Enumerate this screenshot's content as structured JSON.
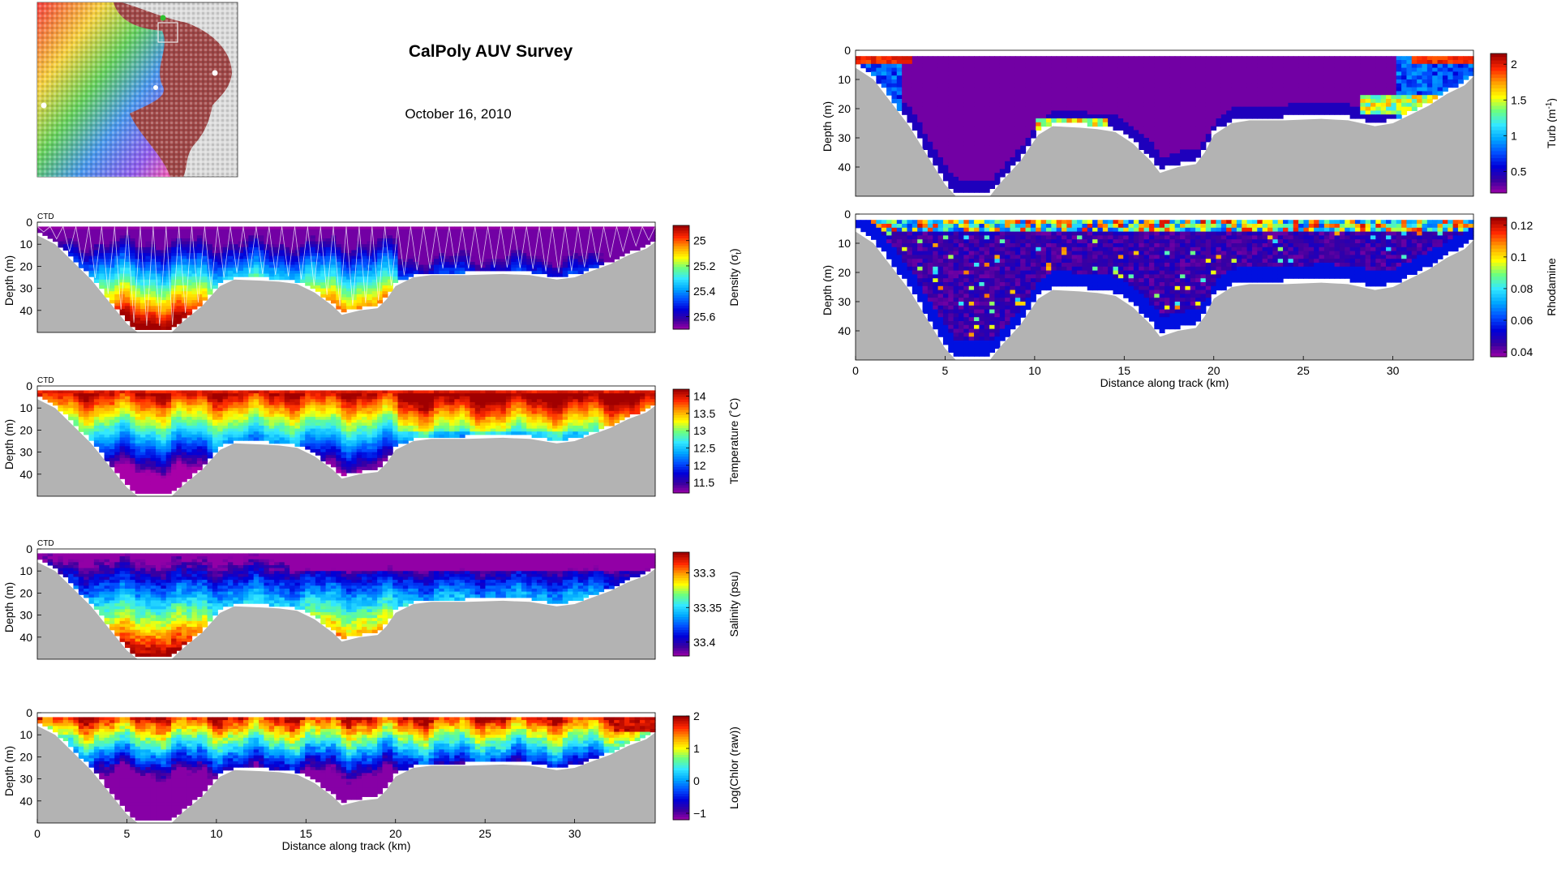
{
  "header": {
    "title": "CalPoly AUV Survey",
    "date": "October 16, 2010"
  },
  "colors": {
    "bathymetry": "#b3b3b3",
    "colormap": [
      "#a800a8",
      "#3b00a0",
      "#0000d8",
      "#0050ff",
      "#00a8ff",
      "#33e8ff",
      "#6cff80",
      "#ffff00",
      "#ffa000",
      "#ff2800",
      "#a00000"
    ],
    "rhodamine_colormap": [
      "#a800a8",
      "#3b00a0",
      "#0000d8",
      "#0050ff",
      "#00a8ff",
      "#33e8ff",
      "#6cff80",
      "#ffff00",
      "#ffa000",
      "#ff2800",
      "#a00000"
    ]
  },
  "chart_data": [
    {
      "id": "density",
      "type": "heatmap",
      "tag": "CTD",
      "xlabel": "",
      "ylabel": "Depth (m)",
      "xlim": [
        0,
        34.5
      ],
      "ylim": [
        0,
        48
      ],
      "yticks": [
        0,
        10,
        20,
        30,
        40
      ],
      "xticks": [],
      "colorbar": {
        "label": "Density (σ",
        "label_sub": "t",
        "label_end": ")",
        "ticks": [
          "25",
          "25.2",
          "25.4",
          "25.6"
        ],
        "tick_values": [
          25.0,
          25.2,
          25.4,
          25.6
        ],
        "range": [
          24.88,
          25.7
        ],
        "reversed": true
      }
    },
    {
      "id": "temperature",
      "type": "heatmap",
      "tag": "CTD",
      "xlabel": "",
      "ylabel": "Depth (m)",
      "xlim": [
        0,
        34.5
      ],
      "ylim": [
        0,
        48
      ],
      "yticks": [
        0,
        10,
        20,
        30,
        40
      ],
      "xticks": [],
      "colorbar": {
        "label": "Temperature (˚C)",
        "ticks": [
          "14",
          "13.5",
          "13",
          "12.5",
          "12",
          "11.5"
        ],
        "tick_values": [
          14,
          13.5,
          13,
          12.5,
          12,
          11.5
        ],
        "range": [
          11.2,
          14.2
        ],
        "reversed": false
      }
    },
    {
      "id": "salinity",
      "type": "heatmap",
      "tag": "CTD",
      "xlabel": "",
      "ylabel": "Depth (m)",
      "xlim": [
        0,
        34.5
      ],
      "ylim": [
        0,
        48
      ],
      "yticks": [
        0,
        10,
        20,
        30,
        40
      ],
      "xticks": [],
      "colorbar": {
        "label": "Salinity (psu)",
        "ticks": [
          "33.3",
          "33.35",
          "33.4"
        ],
        "tick_values": [
          33.3,
          33.35,
          33.4
        ],
        "range": [
          33.27,
          33.42
        ],
        "reversed": true
      }
    },
    {
      "id": "chlorophyll",
      "type": "heatmap",
      "tag": "",
      "xlabel": "Distance along track (km)",
      "ylabel": "Depth (m)",
      "xlim": [
        0,
        34.5
      ],
      "ylim": [
        0,
        48
      ],
      "yticks": [
        0,
        10,
        20,
        30,
        40
      ],
      "xticks": [
        0,
        5,
        10,
        15,
        20,
        25,
        30
      ],
      "colorbar": {
        "label": "Log(Chlor (raw))",
        "ticks": [
          "2",
          "1",
          "0",
          "−1"
        ],
        "tick_values": [
          2,
          1,
          0,
          -1
        ],
        "range": [
          -1.2,
          2.0
        ],
        "reversed": false
      }
    },
    {
      "id": "turbidity",
      "type": "heatmap",
      "tag": "",
      "xlabel": "",
      "ylabel": "Depth (m)",
      "xlim": [
        0,
        34.5
      ],
      "ylim": [
        0,
        48
      ],
      "yticks": [
        0,
        10,
        20,
        30,
        40
      ],
      "xticks": [],
      "colorbar": {
        "label": "Turb (m",
        "label_sup": "-1",
        "label_end": ")",
        "ticks": [
          "2",
          "1.5",
          "1",
          "0.5"
        ],
        "tick_values": [
          2,
          1.5,
          1,
          0.5
        ],
        "range": [
          0.2,
          2.15
        ],
        "reversed": false
      }
    },
    {
      "id": "rhodamine",
      "type": "heatmap",
      "tag": "",
      "xlabel": "Distance along track (km)",
      "ylabel": "Depth (m)",
      "xlim": [
        0,
        34.5
      ],
      "ylim": [
        0,
        48
      ],
      "yticks": [
        0,
        10,
        20,
        30,
        40
      ],
      "xticks": [
        0,
        5,
        10,
        15,
        20,
        25,
        30
      ],
      "colorbar": {
        "label": "Rhodamine",
        "ticks": [
          "0.12",
          "0.1",
          "0.08",
          "0.06",
          "0.04"
        ],
        "tick_values": [
          0.12,
          0.1,
          0.08,
          0.06,
          0.04
        ],
        "range": [
          0.037,
          0.125
        ],
        "reversed": false
      }
    }
  ],
  "bathymetry_km_depth": [
    [
      0,
      4
    ],
    [
      1,
      8
    ],
    [
      2,
      16
    ],
    [
      3,
      24
    ],
    [
      4,
      34
    ],
    [
      5,
      44
    ],
    [
      5.6,
      48
    ],
    [
      7.5,
      48
    ],
    [
      8,
      44
    ],
    [
      9.2,
      36
    ],
    [
      10.2,
      27
    ],
    [
      11,
      24
    ],
    [
      12.5,
      24.5
    ],
    [
      13.5,
      25
    ],
    [
      14.5,
      26
    ],
    [
      15.5,
      30
    ],
    [
      16.5,
      36
    ],
    [
      17,
      40
    ],
    [
      18,
      38
    ],
    [
      19,
      37
    ],
    [
      19.5,
      33
    ],
    [
      20,
      27
    ],
    [
      21,
      23
    ],
    [
      22,
      22
    ],
    [
      24,
      22
    ],
    [
      26,
      21.5
    ],
    [
      27.5,
      22
    ],
    [
      29,
      24
    ],
    [
      30,
      23
    ],
    [
      31,
      20
    ],
    [
      32,
      17
    ],
    [
      33,
      13
    ],
    [
      34,
      10
    ],
    [
      34.5,
      7
    ]
  ]
}
